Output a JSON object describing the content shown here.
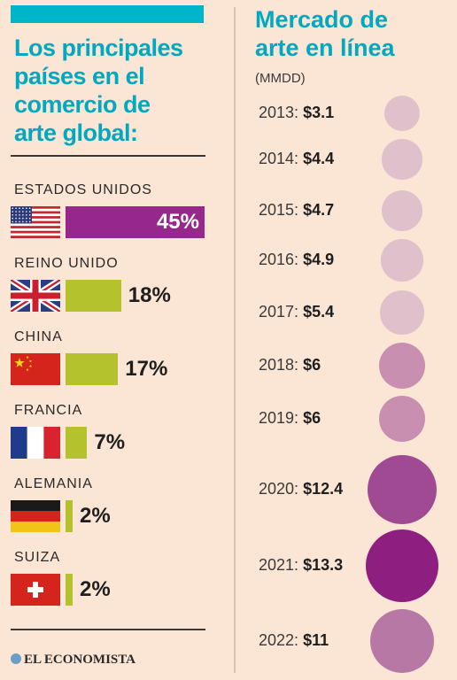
{
  "left": {
    "title_lines": [
      "Los principales",
      "países en el",
      "comercio de",
      "arte global:"
    ]
  },
  "right": {
    "title_lines": [
      "Mercado de",
      "arte en línea"
    ],
    "unit": "(MMDD)"
  },
  "logo": "EL ECONOMISTA",
  "colors": {
    "title": "#00a8c0",
    "top_bar": "#00b5c9",
    "us_bar": "#96288c",
    "other_bars": "#b4c22e",
    "background": "#fbe5d4"
  },
  "chart_data": [
    {
      "type": "bar",
      "title": "Los principales países en el comercio de arte global:",
      "categories": [
        "ESTADOS UNIDOS",
        "REINO UNIDO",
        "CHINA",
        "FRANCIA",
        "ALEMANIA",
        "SUIZA"
      ],
      "values": [
        45,
        18,
        17,
        7,
        2,
        2
      ],
      "labels": [
        "45%",
        "18%",
        "17%",
        "7%",
        "2%",
        "2%"
      ],
      "flags": [
        "us-flag-icon",
        "uk-flag-icon",
        "china-flag-icon",
        "france-flag-icon",
        "germany-flag-icon",
        "switzerland-flag-icon"
      ]
    },
    {
      "type": "scatter",
      "title": "Mercado de arte en línea",
      "unit": "(MMDD)",
      "years": [
        "2013",
        "2014",
        "2015",
        "2016",
        "2017",
        "2018",
        "2019",
        "2020",
        "2021",
        "2022"
      ],
      "values": [
        3.1,
        4.4,
        4.7,
        4.9,
        5.4,
        6,
        6,
        12.4,
        13.3,
        11
      ],
      "labels": [
        "$3.1",
        "$4.4",
        "$4.7",
        "$4.9",
        "$5.4",
        "$6",
        "$6",
        "$12.4",
        "$13.3",
        "$11"
      ],
      "colors": [
        "#e0c0cb",
        "#e0c0cb",
        "#e0c0cb",
        "#e0c0cb",
        "#e0c0cb",
        "#c98fb0",
        "#c98fb0",
        "#9f4a92",
        "#8e1f80",
        "#b878a6"
      ]
    }
  ]
}
